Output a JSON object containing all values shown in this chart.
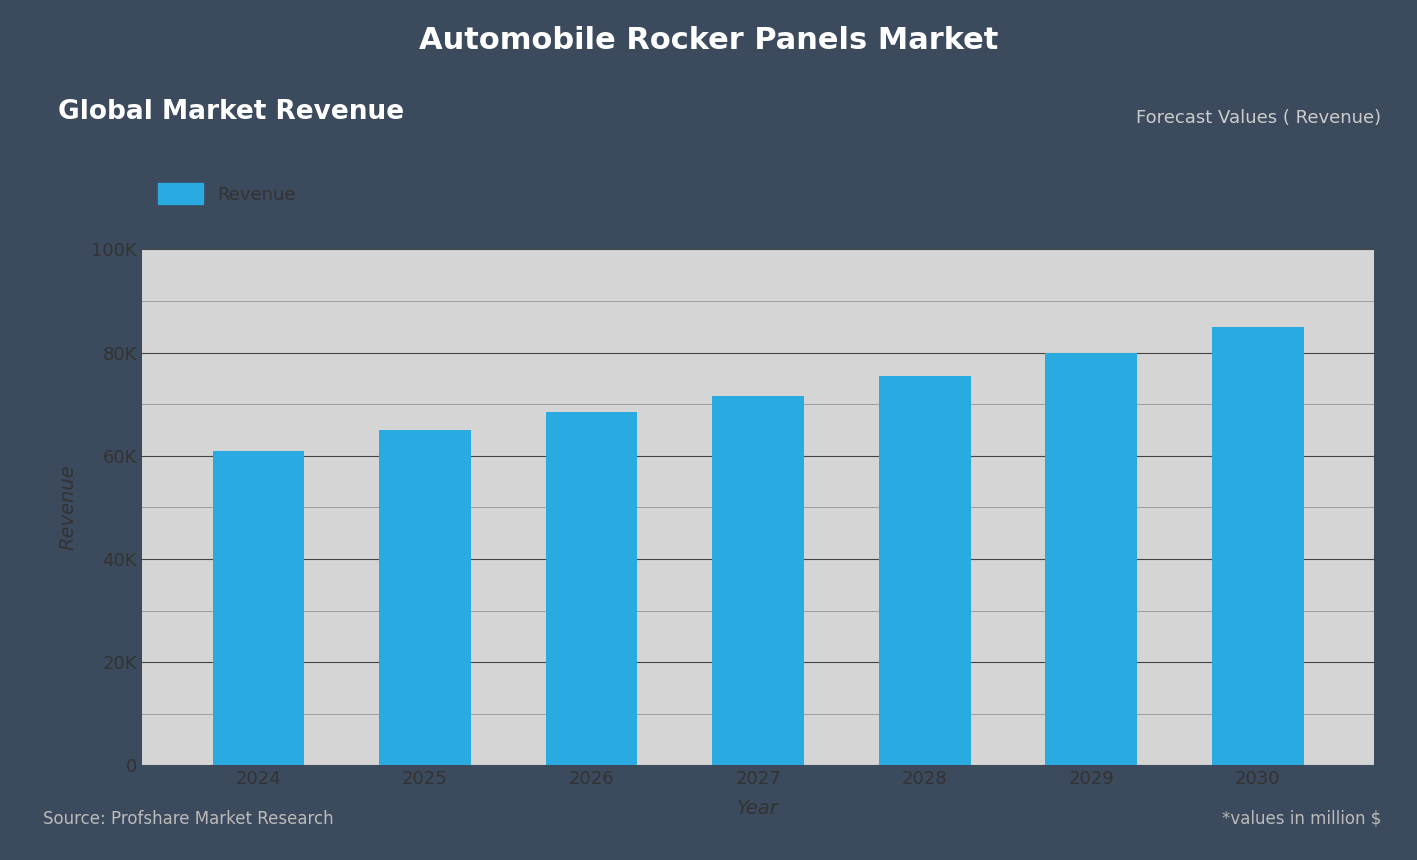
{
  "title": "Automobile Rocker Panels Market",
  "subtitle_left": "Global Market Revenue",
  "subtitle_right": "Forecast Values ( Revenue)",
  "footer_left": "Source: Profshare Market Research",
  "footer_right": "*values in million $",
  "xlabel": "Year",
  "ylabel": "Revenue",
  "legend_label": "Revenue",
  "bar_color": "#29ABE2",
  "years": [
    2024,
    2025,
    2026,
    2027,
    2028,
    2029,
    2030
  ],
  "values": [
    61000,
    65000,
    68500,
    71500,
    75500,
    80000,
    85000
  ],
  "ylim": [
    0,
    100000
  ],
  "yticks": [
    0,
    20000,
    40000,
    60000,
    80000,
    100000
  ],
  "background_outer": "#3B4A5C",
  "background_inner": "#D5D5D5",
  "title_color": "#FFFFFF",
  "subtitle_left_bg": "#6080B0",
  "subtitle_left_color": "#FFFFFF",
  "subtitle_right_color": "#CCCCCC",
  "footer_color": "#BBBBBB",
  "axis_label_color": "#333333",
  "tick_color": "#333333",
  "grid_color": "#444444",
  "minor_grid_color": "#888888"
}
